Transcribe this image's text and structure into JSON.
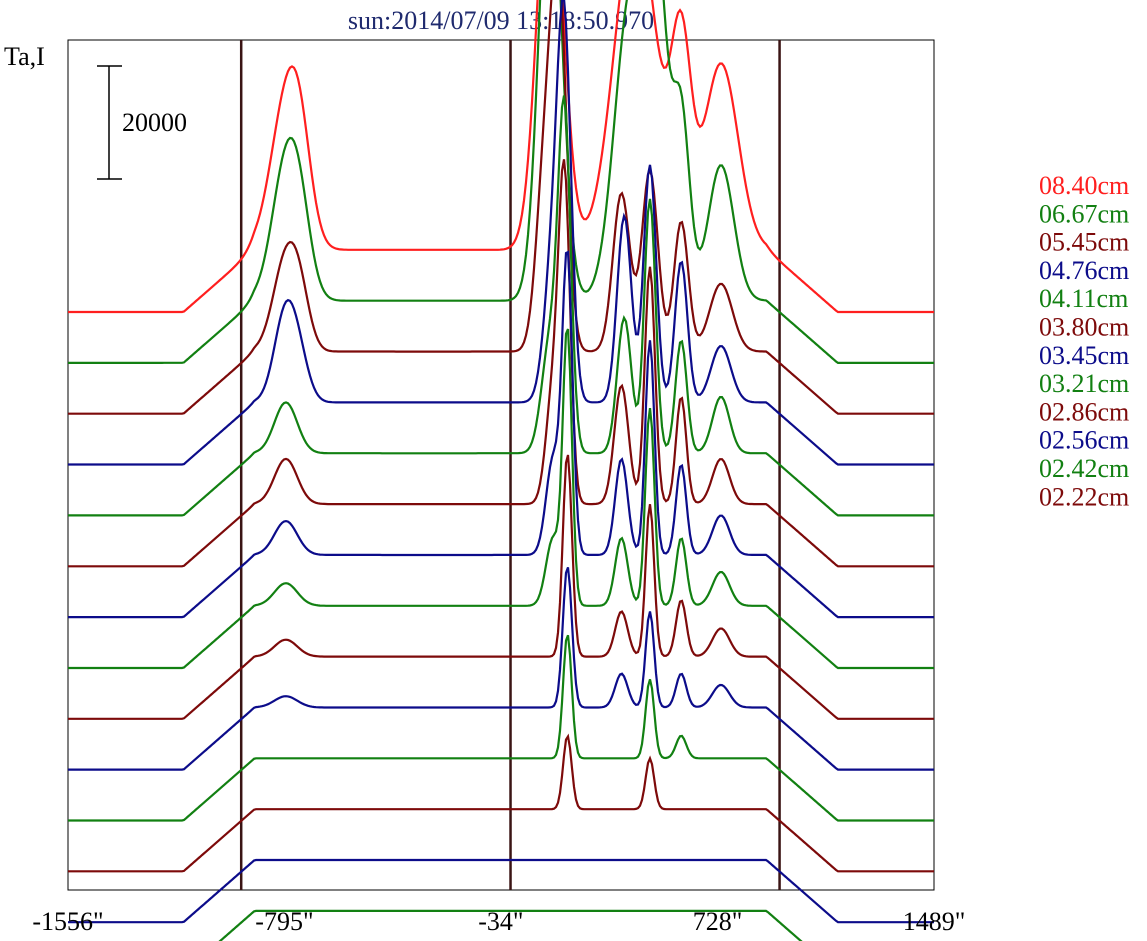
{
  "chart_data": {
    "type": "line",
    "title": "sun:2014/07/09 13:18:50.970",
    "ylabel": "Ta,I",
    "scale_bar_label": "20000",
    "xlim": [
      -1556,
      1489
    ],
    "x_ticks": [
      {
        "value": -1556,
        "label": "-1556\""
      },
      {
        "value": -795,
        "label": "-795\""
      },
      {
        "value": -34,
        "label": "-34\""
      },
      {
        "value": 728,
        "label": "728\""
      },
      {
        "value": 1489,
        "label": "1489\""
      }
    ],
    "vertical_markers": [
      -947,
      0,
      946
    ],
    "grid": false,
    "legend_position": "right",
    "series": [
      {
        "name": "08.40cm",
        "color": "#ff1f1f",
        "offset": 0,
        "peaks": [
          [
            -790,
            25000,
            55
          ],
          [
            -740,
            12000,
            40
          ],
          [
            140,
            73000,
            45
          ],
          [
            440,
            59000,
            75
          ],
          [
            600,
            34000,
            35
          ],
          [
            740,
            33000,
            60
          ]
        ]
      },
      {
        "name": "06.67cm",
        "color": "#128012",
        "offset": -9000,
        "peaks": [
          [
            -790,
            23000,
            50
          ],
          [
            -740,
            10000,
            40
          ],
          [
            140,
            80000,
            40
          ],
          [
            420,
            52000,
            55
          ],
          [
            510,
            57000,
            40
          ],
          [
            600,
            32000,
            30
          ],
          [
            740,
            24000,
            45
          ]
        ]
      },
      {
        "name": "05.45cm",
        "color": "#7d0a0a",
        "offset": -18000,
        "peaks": [
          [
            -790,
            16000,
            45
          ],
          [
            -740,
            7000,
            35
          ],
          [
            120,
            31000,
            30
          ],
          [
            170,
            62000,
            28
          ],
          [
            390,
            28000,
            30
          ],
          [
            490,
            32000,
            28
          ],
          [
            600,
            23000,
            25
          ],
          [
            740,
            12000,
            40
          ]
        ]
      },
      {
        "name": "04.76cm",
        "color": "#0c0c8a",
        "offset": -27000,
        "peaks": [
          [
            -790,
            16000,
            40
          ],
          [
            -740,
            5000,
            35
          ],
          [
            150,
            26000,
            30
          ],
          [
            190,
            60000,
            24
          ],
          [
            400,
            33000,
            25
          ],
          [
            490,
            42000,
            22
          ],
          [
            600,
            25000,
            22
          ],
          [
            740,
            10000,
            35
          ]
        ]
      },
      {
        "name": "04.11cm",
        "color": "#128012",
        "offset": -36000,
        "peaks": [
          [
            -790,
            9000,
            40
          ],
          [
            140,
            20000,
            30
          ],
          [
            190,
            58000,
            22
          ],
          [
            400,
            24000,
            25
          ],
          [
            490,
            45000,
            20
          ],
          [
            600,
            20000,
            20
          ],
          [
            740,
            10000,
            30
          ]
        ]
      },
      {
        "name": "03.80cm",
        "color": "#7d0a0a",
        "offset": -45000,
        "peaks": [
          [
            -790,
            8000,
            40
          ],
          [
            150,
            20000,
            25
          ],
          [
            190,
            55000,
            20
          ],
          [
            390,
            21000,
            25
          ],
          [
            490,
            42000,
            18
          ],
          [
            600,
            19000,
            18
          ],
          [
            740,
            8000,
            30
          ]
        ]
      },
      {
        "name": "03.45cm",
        "color": "#0c0c8a",
        "offset": -54000,
        "peaks": [
          [
            -790,
            6000,
            40
          ],
          [
            150,
            17000,
            25
          ],
          [
            200,
            52000,
            18
          ],
          [
            390,
            17000,
            22
          ],
          [
            490,
            38000,
            16
          ],
          [
            600,
            16000,
            18
          ],
          [
            740,
            7000,
            30
          ]
        ]
      },
      {
        "name": "03.21cm",
        "color": "#128012",
        "offset": -63000,
        "peaks": [
          [
            -790,
            4000,
            40
          ],
          [
            150,
            12000,
            25
          ],
          [
            200,
            48000,
            16
          ],
          [
            390,
            12000,
            22
          ],
          [
            490,
            35000,
            16
          ],
          [
            600,
            12000,
            18
          ],
          [
            740,
            6000,
            30
          ]
        ]
      },
      {
        "name": "02.86cm",
        "color": "#7d0a0a",
        "offset": -72000,
        "peaks": [
          [
            -790,
            3000,
            40
          ],
          [
            200,
            36000,
            16
          ],
          [
            390,
            8000,
            22
          ],
          [
            490,
            27000,
            15
          ],
          [
            600,
            10000,
            18
          ],
          [
            740,
            5000,
            30
          ]
        ]
      },
      {
        "name": "02.56cm",
        "color": "#0c0c8a",
        "offset": -81000,
        "peaks": [
          [
            -790,
            2000,
            40
          ],
          [
            200,
            25000,
            16
          ],
          [
            390,
            6000,
            22
          ],
          [
            490,
            17000,
            15
          ],
          [
            600,
            6000,
            18
          ],
          [
            740,
            4000,
            30
          ]
        ]
      },
      {
        "name": "02.42cm",
        "color": "#128012",
        "offset": -90000,
        "peaks": [
          [
            200,
            22000,
            15
          ],
          [
            490,
            14000,
            15
          ],
          [
            600,
            4000,
            18
          ]
        ]
      },
      {
        "name": "02.22cm",
        "color": "#7d0a0a",
        "offset": -99000,
        "peaks": [
          [
            200,
            13000,
            15
          ],
          [
            490,
            9000,
            15
          ]
        ]
      }
    ],
    "extra_lower_traces": [
      {
        "color": "#0c0c8a",
        "offset": -108000
      },
      {
        "color": "#128012",
        "offset": -117000
      }
    ]
  }
}
